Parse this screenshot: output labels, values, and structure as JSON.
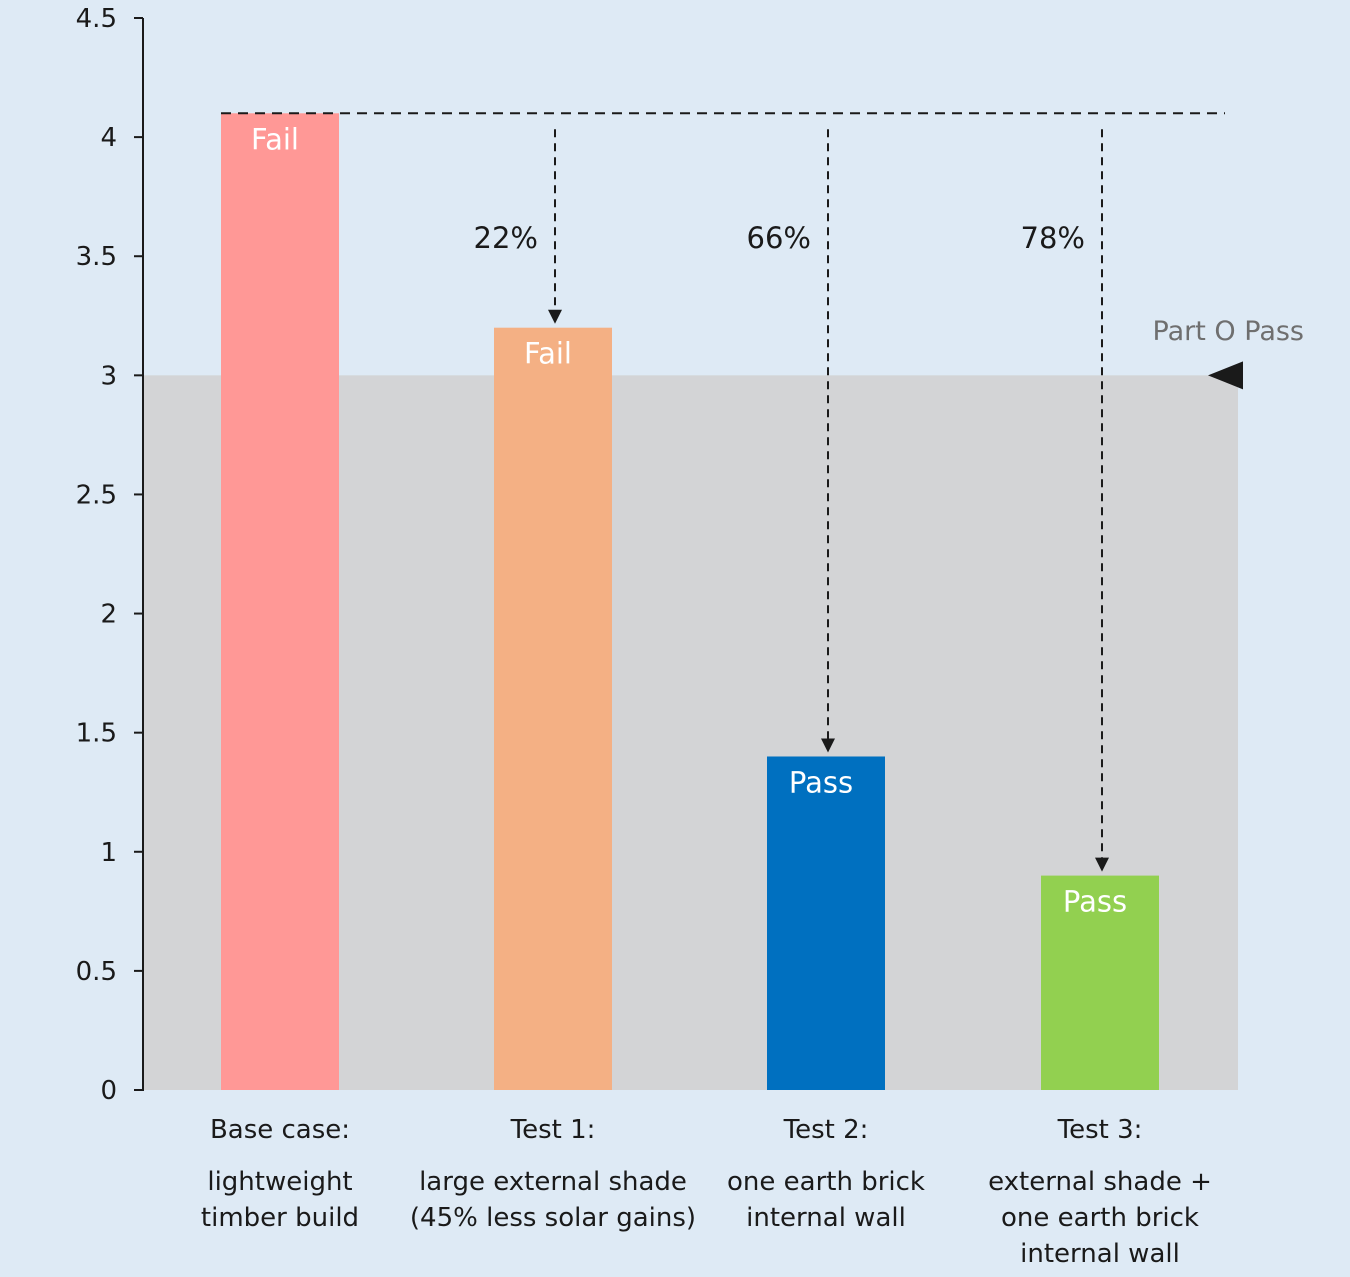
{
  "chart_data": {
    "type": "bar",
    "categories": [
      "Base case:",
      "Test 1:",
      "Test 2:",
      "Test 3:"
    ],
    "category_descriptions": [
      [
        "lightweight",
        "timber build"
      ],
      [
        "large external shade",
        "(45% less solar gains)"
      ],
      [
        "one earth brick",
        "internal wall"
      ],
      [
        "external shade +",
        "one earth brick",
        "internal wall"
      ]
    ],
    "values": [
      4.1,
      3.2,
      1.4,
      0.9
    ],
    "bar_colors": [
      "#ff9896",
      "#f4b084",
      "#0070c0",
      "#92d050"
    ],
    "bar_labels": [
      "Fail",
      "Fail",
      "Pass",
      "Pass"
    ],
    "reduction_labels": [
      null,
      "22%",
      "66%",
      "78%"
    ],
    "ylim": [
      0,
      4.5
    ],
    "yticks": [
      0,
      0.5,
      1,
      1.5,
      2,
      2.5,
      3,
      3.5,
      4,
      4.5
    ],
    "ytick_labels": [
      "0",
      "0.5",
      "1",
      "1.5",
      "2",
      "2.5",
      "3",
      "3.5",
      "4",
      "4.5"
    ],
    "threshold": {
      "value": 3,
      "label": "Part O Pass",
      "band_color": "#d3d4d6"
    },
    "reference_line": 4.1,
    "title": "",
    "xlabel": "",
    "ylabel": "",
    "grid": false,
    "legend": "none"
  }
}
